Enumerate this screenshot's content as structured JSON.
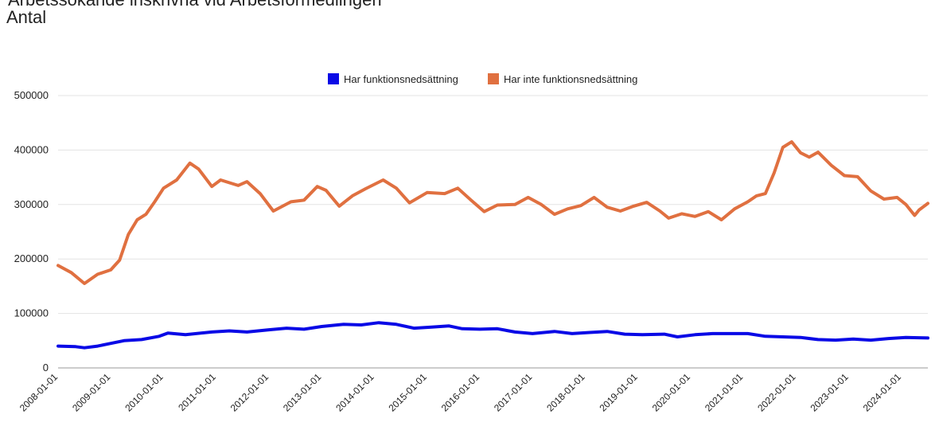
{
  "title": "Arbetssökande inskrivna vid Arbetsförmedlingen",
  "subtitle": "Antal",
  "chart_data": {
    "type": "line",
    "title": "Arbetssökande inskrivna vid Arbetsförmedlingen",
    "subtitle": "Antal",
    "xlabel": "",
    "ylabel": "",
    "ylim": [
      0,
      500000
    ],
    "yticks": [
      0,
      100000,
      200000,
      300000,
      400000,
      500000
    ],
    "ytick_labels": [
      "0",
      "100000",
      "200000",
      "300000",
      "400000",
      "500000"
    ],
    "xtick_labels": [
      "2008-01-01",
      "2009-01-01",
      "2010-01-01",
      "2011-01-01",
      "2012-01-01",
      "2013-01-01",
      "2014-01-01",
      "2015-01-01",
      "2016-01-01",
      "2017-01-01",
      "2018-01-01",
      "2019-01-01",
      "2020-01-01",
      "2021-01-01",
      "2022-01-01",
      "2023-01-01",
      "2024-01-01"
    ],
    "x_start": "2008-01",
    "x_end": "2024-07",
    "x_frequency": "monthly",
    "grid": true,
    "legend_position": "top",
    "series": [
      {
        "name": "Har funktionsnedsättning",
        "color": "#0a0ae6",
        "points": [
          [
            "2008-01",
            40000
          ],
          [
            "2008-05",
            39000
          ],
          [
            "2008-07",
            37000
          ],
          [
            "2008-10",
            40000
          ],
          [
            "2009-01",
            45000
          ],
          [
            "2009-04",
            50000
          ],
          [
            "2009-08",
            52000
          ],
          [
            "2009-12",
            58000
          ],
          [
            "2010-02",
            64000
          ],
          [
            "2010-06",
            61000
          ],
          [
            "2010-12",
            66000
          ],
          [
            "2011-04",
            68000
          ],
          [
            "2011-08",
            66000
          ],
          [
            "2012-01",
            70000
          ],
          [
            "2012-05",
            73000
          ],
          [
            "2012-09",
            71000
          ],
          [
            "2013-01",
            76000
          ],
          [
            "2013-06",
            80000
          ],
          [
            "2013-10",
            79000
          ],
          [
            "2014-02",
            83000
          ],
          [
            "2014-06",
            80000
          ],
          [
            "2014-10",
            73000
          ],
          [
            "2015-02",
            75000
          ],
          [
            "2015-06",
            77000
          ],
          [
            "2015-09",
            72000
          ],
          [
            "2016-01",
            71000
          ],
          [
            "2016-05",
            72000
          ],
          [
            "2016-09",
            66000
          ],
          [
            "2017-01",
            63000
          ],
          [
            "2017-06",
            67000
          ],
          [
            "2017-10",
            63000
          ],
          [
            "2018-02",
            65000
          ],
          [
            "2018-06",
            67000
          ],
          [
            "2018-10",
            62000
          ],
          [
            "2019-02",
            61000
          ],
          [
            "2019-07",
            62000
          ],
          [
            "2019-10",
            57000
          ],
          [
            "2020-02",
            61000
          ],
          [
            "2020-06",
            63000
          ],
          [
            "2020-10",
            63000
          ],
          [
            "2021-02",
            63000
          ],
          [
            "2021-06",
            58000
          ],
          [
            "2021-10",
            57000
          ],
          [
            "2022-02",
            56000
          ],
          [
            "2022-06",
            52000
          ],
          [
            "2022-10",
            51000
          ],
          [
            "2023-02",
            53000
          ],
          [
            "2023-06",
            51000
          ],
          [
            "2023-10",
            54000
          ],
          [
            "2024-02",
            56000
          ],
          [
            "2024-07",
            55000
          ]
        ]
      },
      {
        "name": "Har inte funktionsnedsättning",
        "color": "#e07040",
        "points": [
          [
            "2008-01",
            188000
          ],
          [
            "2008-04",
            175000
          ],
          [
            "2008-07",
            155000
          ],
          [
            "2008-10",
            172000
          ],
          [
            "2009-01",
            180000
          ],
          [
            "2009-03",
            198000
          ],
          [
            "2009-05",
            245000
          ],
          [
            "2009-07",
            272000
          ],
          [
            "2009-09",
            282000
          ],
          [
            "2009-11",
            305000
          ],
          [
            "2010-01",
            330000
          ],
          [
            "2010-04",
            345000
          ],
          [
            "2010-07",
            376000
          ],
          [
            "2010-09",
            365000
          ],
          [
            "2010-12",
            333000
          ],
          [
            "2011-02",
            345000
          ],
          [
            "2011-06",
            335000
          ],
          [
            "2011-08",
            342000
          ],
          [
            "2011-11",
            320000
          ],
          [
            "2012-02",
            288000
          ],
          [
            "2012-06",
            305000
          ],
          [
            "2012-09",
            308000
          ],
          [
            "2012-12",
            333000
          ],
          [
            "2013-02",
            326000
          ],
          [
            "2013-05",
            297000
          ],
          [
            "2013-08",
            316000
          ],
          [
            "2013-11",
            329000
          ],
          [
            "2014-03",
            345000
          ],
          [
            "2014-06",
            330000
          ],
          [
            "2014-09",
            303000
          ],
          [
            "2015-01",
            322000
          ],
          [
            "2015-05",
            320000
          ],
          [
            "2015-08",
            330000
          ],
          [
            "2015-11",
            308000
          ],
          [
            "2016-02",
            287000
          ],
          [
            "2016-05",
            299000
          ],
          [
            "2016-09",
            300000
          ],
          [
            "2016-12",
            313000
          ],
          [
            "2017-03",
            300000
          ],
          [
            "2017-06",
            282000
          ],
          [
            "2017-09",
            292000
          ],
          [
            "2017-12",
            298000
          ],
          [
            "2018-03",
            313000
          ],
          [
            "2018-06",
            295000
          ],
          [
            "2018-09",
            288000
          ],
          [
            "2018-12",
            297000
          ],
          [
            "2019-03",
            304000
          ],
          [
            "2019-06",
            288000
          ],
          [
            "2019-08",
            275000
          ],
          [
            "2019-11",
            283000
          ],
          [
            "2020-02",
            278000
          ],
          [
            "2020-05",
            287000
          ],
          [
            "2020-08",
            272000
          ],
          [
            "2020-11",
            292000
          ],
          [
            "2021-02",
            305000
          ],
          [
            "2021-04",
            316000
          ],
          [
            "2021-06",
            320000
          ],
          [
            "2021-08",
            358000
          ],
          [
            "2021-10",
            405000
          ],
          [
            "2021-12",
            415000
          ],
          [
            "2022-02",
            395000
          ],
          [
            "2022-04",
            387000
          ],
          [
            "2022-06",
            396000
          ],
          [
            "2022-09",
            372000
          ],
          [
            "2022-12",
            353000
          ],
          [
            "2023-03",
            351000
          ],
          [
            "2023-06",
            325000
          ],
          [
            "2023-09",
            310000
          ],
          [
            "2023-12",
            313000
          ],
          [
            "2024-02",
            300000
          ],
          [
            "2024-04",
            280000
          ],
          [
            "2024-05",
            290000
          ],
          [
            "2024-07",
            302000
          ]
        ]
      }
    ]
  }
}
